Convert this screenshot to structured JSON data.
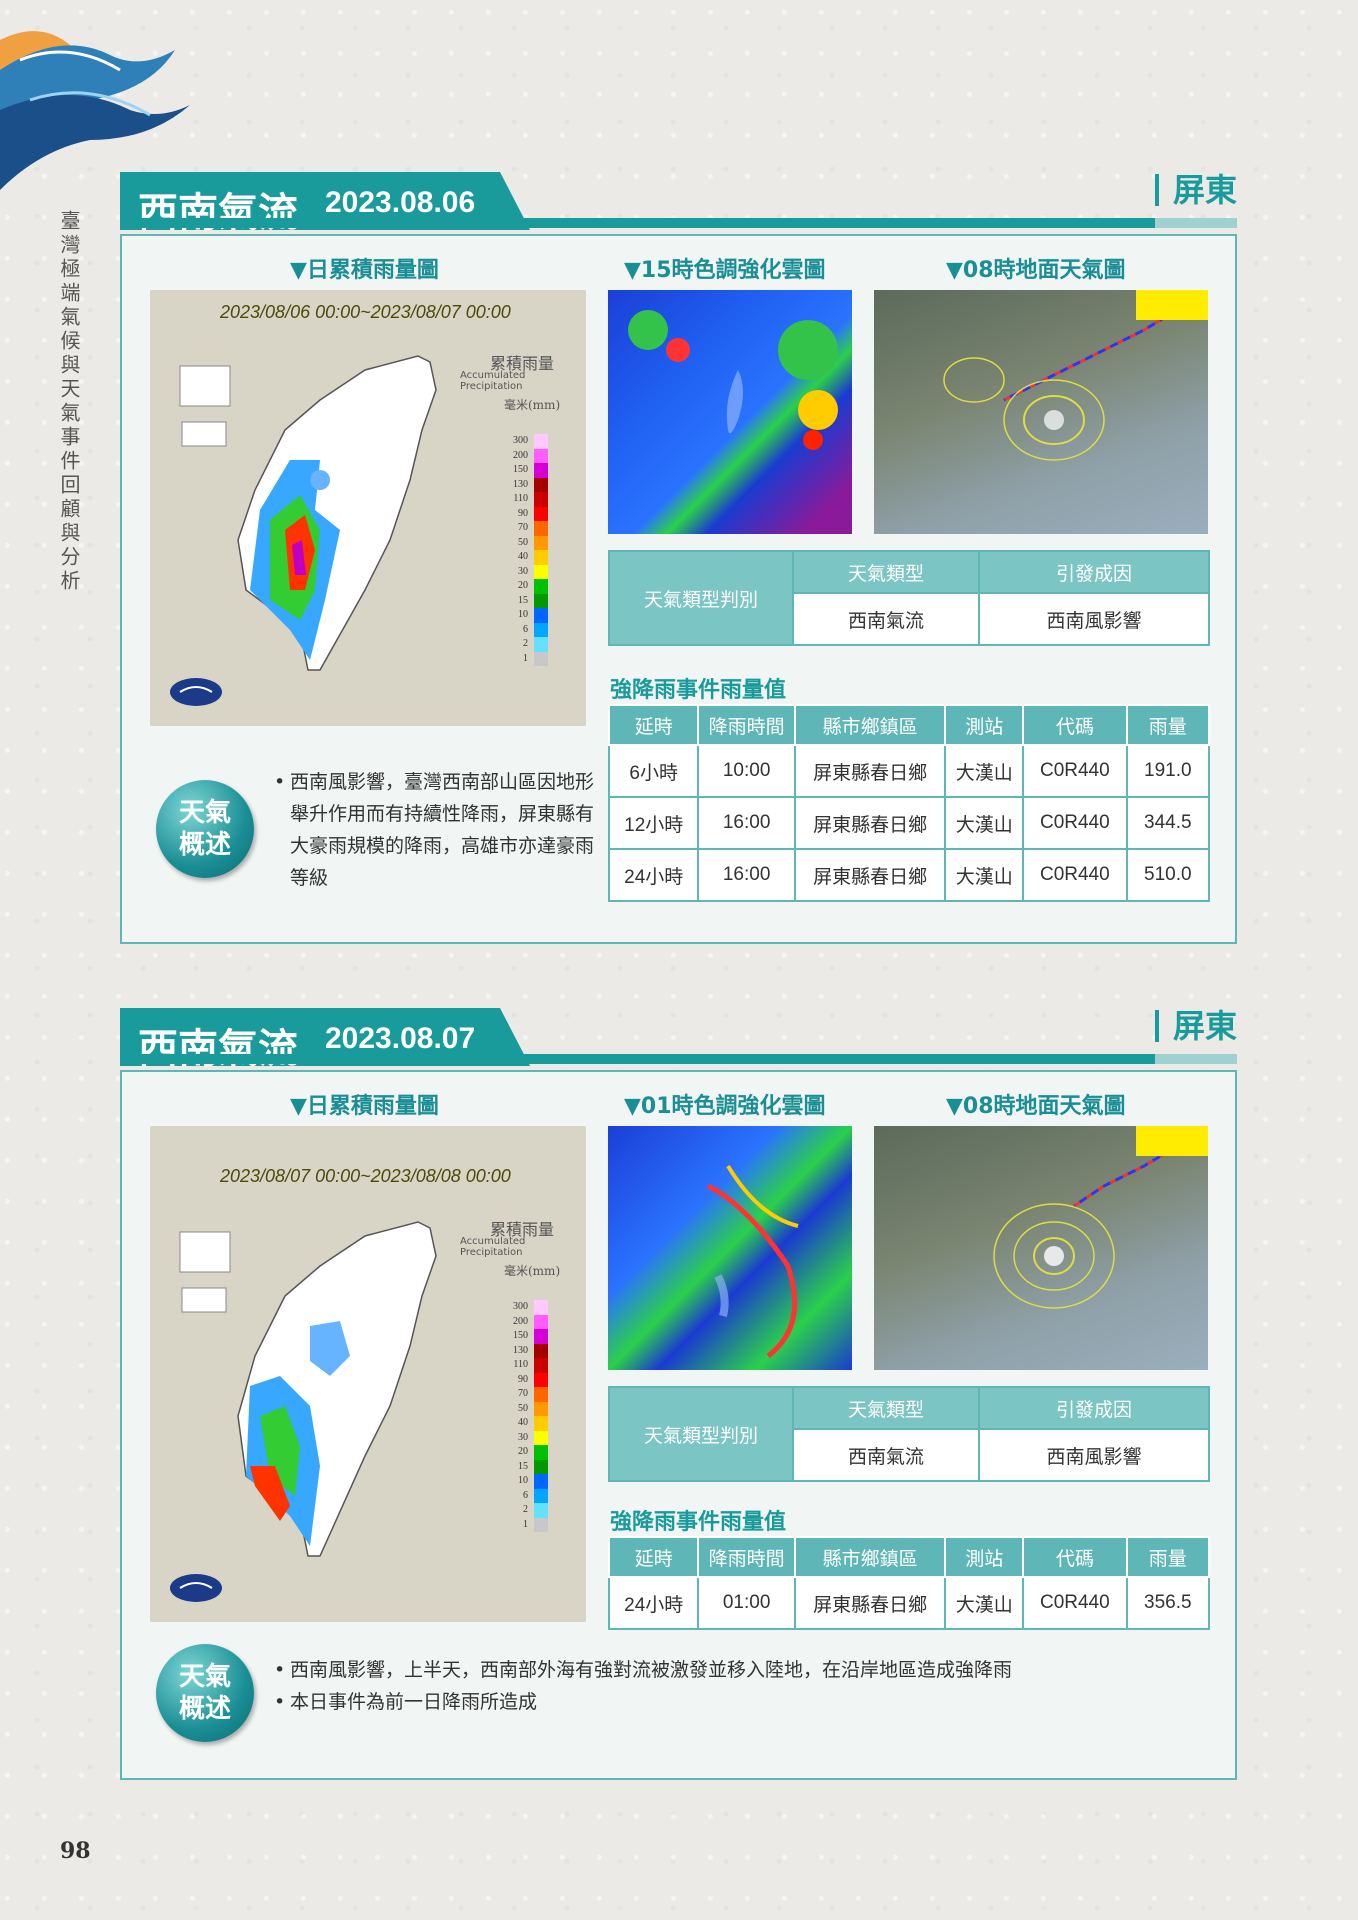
{
  "side_title": "臺灣極端氣候與天氣事件回顧與分析",
  "page_number": "98",
  "sections": [
    {
      "title": "西南氣流",
      "date": "2023.08.06",
      "region": "屏東",
      "captions": {
        "rain_map": "▼日累積雨量圖",
        "satellite": "▼15時色調強化雲圖",
        "surface": "▼08時地面天氣圖"
      },
      "map": {
        "date_range": "2023/08/06 00:00~2023/08/07 00:00",
        "legend_title": "累積雨量",
        "legend_sub": "Accumulated Precipitation",
        "legend_unit": "毫米(mm)"
      },
      "classification": {
        "label": "天氣類型判別",
        "type_header": "天氣類型",
        "cause_header": "引發成因",
        "type_value": "西南氣流",
        "cause_value": "西南風影響"
      },
      "rain_title": "強降雨事件雨量值",
      "rain_headers": [
        "延時",
        "降雨時間",
        "縣市鄉鎮區",
        "測站",
        "代碼",
        "雨量"
      ],
      "rain_rows": [
        [
          "6小時",
          "10:00",
          "屏東縣春日鄉",
          "大漢山",
          "C0R440",
          "191.0"
        ],
        [
          "12小時",
          "16:00",
          "屏東縣春日鄉",
          "大漢山",
          "C0R440",
          "344.5"
        ],
        [
          "24小時",
          "16:00",
          "屏東縣春日鄉",
          "大漢山",
          "C0R440",
          "510.0"
        ]
      ],
      "badge": [
        "天氣",
        "概述"
      ],
      "description": [
        "西南風影響，臺灣西南部山區因地形舉升作用而有持續性降雨，屏東縣有大豪雨規模的降雨，高雄市亦達豪雨等級"
      ]
    },
    {
      "title": "西南氣流",
      "date": "2023.08.07",
      "region": "屏東",
      "captions": {
        "rain_map": "▼日累積雨量圖",
        "satellite": "▼01時色調強化雲圖",
        "surface": "▼08時地面天氣圖"
      },
      "map": {
        "date_range": "2023/08/07 00:00~2023/08/08 00:00",
        "legend_title": "累積雨量",
        "legend_sub": "Accumulated Precipitation",
        "legend_unit": "毫米(mm)"
      },
      "classification": {
        "label": "天氣類型判別",
        "type_header": "天氣類型",
        "cause_header": "引發成因",
        "type_value": "西南氣流",
        "cause_value": "西南風影響"
      },
      "rain_title": "強降雨事件雨量值",
      "rain_headers": [
        "延時",
        "降雨時間",
        "縣市鄉鎮區",
        "測站",
        "代碼",
        "雨量"
      ],
      "rain_rows": [
        [
          "24小時",
          "01:00",
          "屏東縣春日鄉",
          "大漢山",
          "C0R440",
          "356.5"
        ]
      ],
      "badge": [
        "天氣",
        "概述"
      ],
      "description": [
        "西南風影響，上半天，西南部外海有強對流被激發並移入陸地，在沿岸地區造成強降雨",
        "本日事件為前一日降雨所造成"
      ]
    }
  ],
  "legend_values": [
    "300",
    "200",
    "150",
    "130",
    "110",
    "90",
    "70",
    "50",
    "40",
    "30",
    "20",
    "15",
    "10",
    "6",
    "2",
    "1"
  ],
  "legend_colors": [
    "#ffc8ff",
    "#ff5cff",
    "#d600d6",
    "#a30000",
    "#cc0000",
    "#ff0000",
    "#ff6600",
    "#ff9900",
    "#ffcc00",
    "#ffff00",
    "#00c000",
    "#009900",
    "#0066ff",
    "#00a6ff",
    "#66e0ff",
    "#c8c8c8"
  ],
  "colors": {
    "teal": "#1a9b9b",
    "teal_light": "#7bc5c5",
    "panel_border": "#5fb6b6"
  }
}
